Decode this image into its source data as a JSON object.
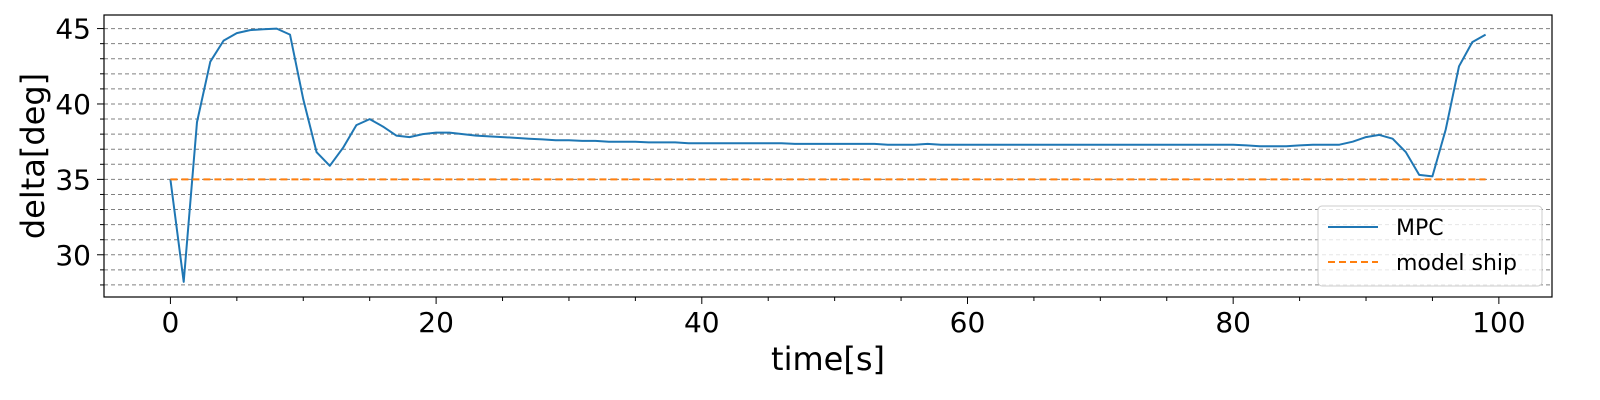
{
  "chart_data": {
    "type": "line",
    "xlabel": "time[s]",
    "ylabel": "delta[deg]",
    "xlim": [
      -5,
      104
    ],
    "ylim": [
      27.2,
      45.9
    ],
    "x_ticks": [
      0,
      20,
      40,
      60,
      80,
      100
    ],
    "y_ticks": [
      30,
      35,
      40,
      45
    ],
    "grid": {
      "axis": "y",
      "style": "dashed",
      "minor_step": 1
    },
    "legend": {
      "placement": "bottom-right"
    },
    "series": [
      {
        "name": "MPC",
        "color": "#1f77b4",
        "style": "solid",
        "x": [
          0,
          1,
          2,
          3,
          4,
          5,
          6,
          7,
          8,
          9,
          10,
          11,
          12,
          13,
          14,
          15,
          16,
          17,
          18,
          19,
          20,
          21,
          22,
          23,
          24,
          25,
          26,
          27,
          28,
          29,
          30,
          31,
          32,
          33,
          34,
          35,
          36,
          37,
          38,
          39,
          40,
          41,
          42,
          43,
          44,
          45,
          46,
          47,
          48,
          49,
          50,
          51,
          52,
          53,
          54,
          55,
          56,
          57,
          58,
          59,
          60,
          61,
          62,
          63,
          64,
          65,
          66,
          67,
          68,
          69,
          70,
          71,
          72,
          73,
          74,
          75,
          76,
          77,
          78,
          79,
          80,
          81,
          82,
          83,
          84,
          85,
          86,
          87,
          88,
          89,
          90,
          91,
          92,
          93,
          94,
          95,
          96,
          97,
          98,
          99
        ],
        "values": [
          35.0,
          28.2,
          38.8,
          42.8,
          44.2,
          44.7,
          44.9,
          44.95,
          45.0,
          44.6,
          40.3,
          36.8,
          35.9,
          37.1,
          38.6,
          39.0,
          38.5,
          37.9,
          37.8,
          38.0,
          38.1,
          38.1,
          38.0,
          37.9,
          37.85,
          37.8,
          37.75,
          37.7,
          37.65,
          37.6,
          37.6,
          37.55,
          37.55,
          37.5,
          37.5,
          37.5,
          37.45,
          37.45,
          37.45,
          37.4,
          37.4,
          37.4,
          37.4,
          37.4,
          37.4,
          37.4,
          37.4,
          37.35,
          37.35,
          37.35,
          37.35,
          37.35,
          37.35,
          37.35,
          37.3,
          37.3,
          37.3,
          37.35,
          37.3,
          37.3,
          37.3,
          37.3,
          37.3,
          37.3,
          37.3,
          37.3,
          37.3,
          37.3,
          37.3,
          37.3,
          37.3,
          37.3,
          37.3,
          37.3,
          37.3,
          37.3,
          37.3,
          37.3,
          37.3,
          37.3,
          37.3,
          37.25,
          37.2,
          37.2,
          37.2,
          37.25,
          37.3,
          37.3,
          37.3,
          37.5,
          37.8,
          37.95,
          37.7,
          36.8,
          35.3,
          35.2,
          38.3,
          42.5,
          44.1,
          44.6
        ]
      },
      {
        "name": "model ship",
        "color": "#ff7f0e",
        "style": "dashed",
        "x": [
          0,
          99
        ],
        "values": [
          35.0,
          35.0
        ]
      }
    ]
  }
}
